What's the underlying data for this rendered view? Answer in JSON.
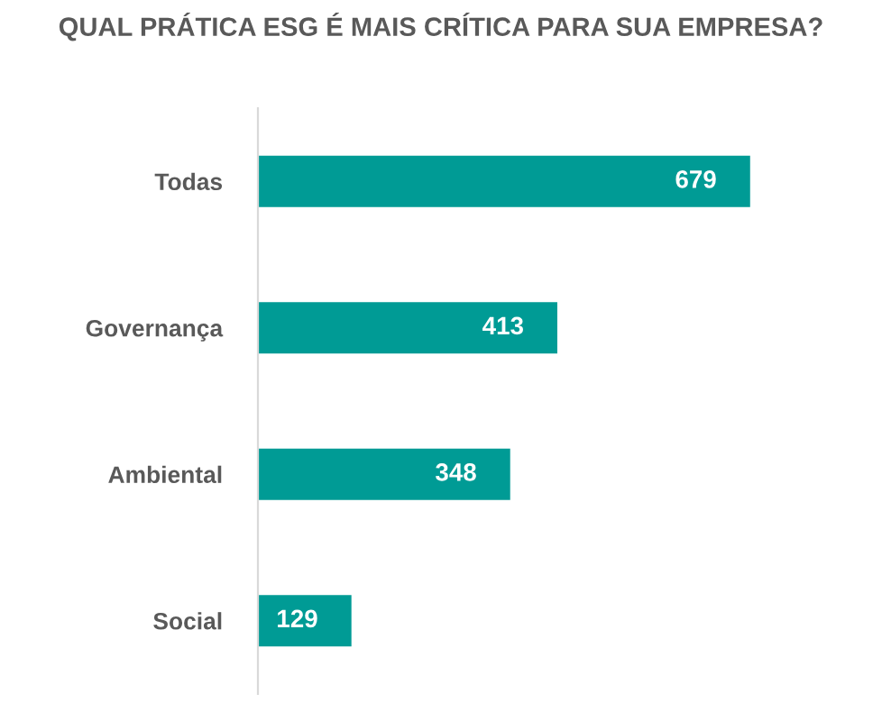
{
  "chart_data": {
    "type": "bar",
    "orientation": "horizontal",
    "title": "QUAL PRÁTICA ESG É MAIS CRÍTICA PARA SUA EMPRESA?",
    "categories": [
      "Todas",
      "Governança",
      "Ambiental",
      "Social"
    ],
    "values": [
      679,
      413,
      348,
      129
    ],
    "color": "#009b95",
    "data_labels": true,
    "grid": false,
    "legend": false,
    "tick_labels": "y"
  }
}
